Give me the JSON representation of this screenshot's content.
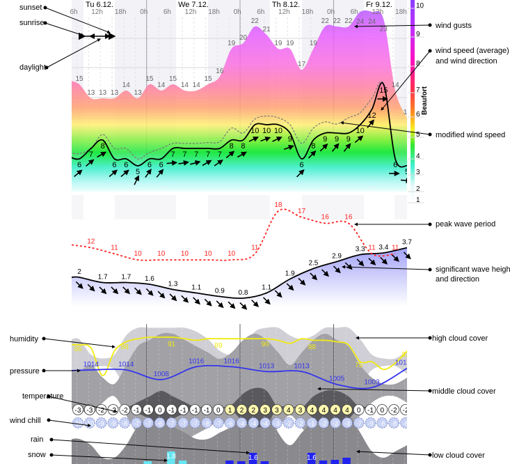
{
  "chart_data": {
    "type": "line",
    "title": "",
    "time_axis": {
      "days": [
        "Tu 6.12.",
        "We 7.12.",
        "Th 8.12.",
        "Fr 9.12."
      ],
      "hours": [
        "6h",
        "12h",
        "18h",
        "0h",
        "6h",
        "12h",
        "18h",
        "0h",
        "6h",
        "12h",
        "18h",
        "0h",
        "6h",
        "12h",
        "18h"
      ]
    },
    "beaufort_axis": {
      "label": "Beaufort",
      "ticks": [
        "1",
        "2",
        "3",
        "4",
        "5",
        "6",
        "7",
        "8",
        "9",
        "10"
      ]
    },
    "wind": {
      "unit": "knots",
      "speed": [
        6,
        7,
        8,
        6,
        6,
        5,
        6,
        6,
        7,
        7,
        7,
        7,
        7,
        8,
        8,
        10,
        10,
        10,
        9,
        6,
        8,
        9,
        9,
        9,
        10,
        12,
        15,
        6,
        5
      ],
      "gusts": [
        15,
        13,
        13,
        13,
        14,
        13,
        15,
        14,
        15,
        14,
        14,
        15,
        16,
        19,
        20,
        22,
        21,
        19,
        19,
        17,
        19,
        22,
        22,
        22,
        24,
        24,
        23,
        14,
        11
      ],
      "modified_speed": [
        6.5,
        7,
        8.8,
        7,
        7,
        6,
        6.6,
        7,
        7.6,
        7.6,
        7.6,
        7.7,
        7.8,
        9.6,
        9,
        10.8,
        11.2,
        11,
        10,
        7.6,
        9.6,
        10.4,
        10.1,
        11,
        11.6,
        13,
        15,
        6,
        5
      ],
      "direction_deg": [
        230,
        230,
        240,
        230,
        230,
        205,
        215,
        220,
        265,
        260,
        255,
        240,
        235,
        230,
        240,
        245,
        250,
        245,
        250,
        225,
        225,
        225,
        220,
        220,
        230,
        220,
        270,
        270,
        275
      ]
    },
    "waves": {
      "height_m": [
        "2",
        "1.7",
        "1.7",
        "1.6",
        "1.3",
        "1.1",
        "0.9",
        "0.8",
        "1.1",
        "1.9",
        "2.5",
        "2.9",
        "3.3",
        "3.4",
        "3.7"
      ],
      "direction_deg": 315,
      "peak_period_s": [
        "12",
        "11",
        "10",
        "10",
        "10",
        "10",
        "10",
        "11",
        "18",
        "17",
        "16",
        "16",
        "11",
        "11"
      ]
    },
    "humidity": {
      "values": [
        86,
        84,
        66,
        82,
        88,
        90,
        91,
        91,
        91,
        90,
        89,
        90,
        90,
        90,
        90,
        90,
        90,
        89,
        87,
        90,
        89,
        89,
        88,
        86,
        75,
        75,
        70,
        74,
        82
      ],
      "labels": [
        "86",
        "88",
        "91",
        "89",
        "90",
        "88",
        "75",
        "82"
      ]
    },
    "pressure": {
      "labels": [
        "1014",
        "1014",
        "1008",
        "1016",
        "1016",
        "1013",
        "1013",
        "1005",
        "1003",
        "1015"
      ]
    },
    "clouds": {
      "high_pct": [
        60,
        20,
        10,
        20,
        70,
        90,
        90,
        90,
        90,
        90,
        80,
        60,
        30,
        20,
        40,
        80,
        90,
        90,
        70,
        60,
        70,
        90,
        90,
        90,
        60,
        20,
        10,
        10,
        30
      ],
      "middle_pct": [
        30,
        40,
        20,
        10,
        40,
        70,
        80,
        90,
        90,
        80,
        70,
        60,
        50,
        60,
        80,
        90,
        80,
        60,
        40,
        60,
        80,
        90,
        80,
        70,
        40,
        20,
        10,
        10,
        20
      ],
      "low_pct": [
        40,
        30,
        10,
        10,
        30,
        60,
        70,
        80,
        60,
        50,
        40,
        40,
        50,
        60,
        80,
        90,
        90,
        50,
        30,
        50,
        70,
        80,
        90,
        80,
        50,
        20,
        10,
        20,
        30
      ]
    },
    "temperature": [
      "-3",
      "-3",
      "-2",
      "-2",
      "-2",
      "-1",
      "-1",
      "0",
      "-1",
      "-1",
      "-1",
      "-1",
      "0",
      "1",
      "2",
      "2",
      "3",
      "3",
      "4",
      "3",
      "4",
      "4",
      "4",
      "4",
      "0",
      "-1",
      "0",
      "-2",
      "-2"
    ],
    "wind_chill": [
      "-10",
      "-10",
      "-9",
      "-9",
      "-8",
      "-7",
      "-7",
      "-6",
      "-7",
      "-7",
      "-7",
      "-8",
      "-7",
      "-6",
      "-4",
      "-4",
      "-4",
      "-3",
      "-2",
      "-2",
      "-1",
      "-2",
      "-2",
      "-3",
      "-7",
      "-9",
      "-8",
      "-8",
      "-8"
    ],
    "precipitation": [
      {
        "type": "snow",
        "slot": 6,
        "amount": 0.4,
        "label": null
      },
      {
        "type": "snow",
        "slot": 8,
        "amount": 1.8,
        "label": "1.8"
      },
      {
        "type": "snow",
        "slot": 9,
        "amount": 0.5,
        "label": null
      },
      {
        "type": "rain",
        "slot": 13,
        "amount": 0.5,
        "label": null
      },
      {
        "type": "rain",
        "slot": 14,
        "amount": 0.4,
        "label": null
      },
      {
        "type": "rain",
        "slot": 15,
        "amount": 1.6,
        "label": "1.6"
      },
      {
        "type": "rain",
        "slot": 16,
        "amount": 0.3,
        "label": null
      },
      {
        "type": "rain",
        "slot": 20,
        "amount": 1.6,
        "label": "1.6"
      },
      {
        "type": "rain",
        "slot": 21,
        "amount": 0.5,
        "label": null
      },
      {
        "type": "rain",
        "slot": 22,
        "amount": 0.6,
        "label": null
      },
      {
        "type": "rain",
        "slot": 23,
        "amount": 0.9,
        "label": null
      }
    ],
    "colors": {
      "snow": "#66e6f2",
      "rain": "#2222ee",
      "humidity": "#f2ea10",
      "pressure": "#3333ee",
      "wave_period": "#ff2020",
      "wave_fill": "#9c9cf8"
    }
  },
  "annotations": {
    "sunset": "sunset",
    "sunrise": "sunrise",
    "daylight": "daylight",
    "wind_gusts": "wind gusts",
    "wind_speed_1": "wind speed (average)",
    "wind_speed_2": "and wind direction",
    "modified_wind_speed": "modified wind speed",
    "peak_wave_period": "peak wave period",
    "wave_height_1": "significant wave height",
    "wave_height_2": "and direction",
    "humidity": "humidity",
    "pressure": "pressure",
    "temperature": "temperature",
    "wind_chill": "wind chill",
    "rain": "rain",
    "snow": "snow",
    "high_cloud_cover": "high cloud cover",
    "middle_cloud_cover": "middle cloud cover",
    "low_cloud_cover": "low cloud cover"
  }
}
